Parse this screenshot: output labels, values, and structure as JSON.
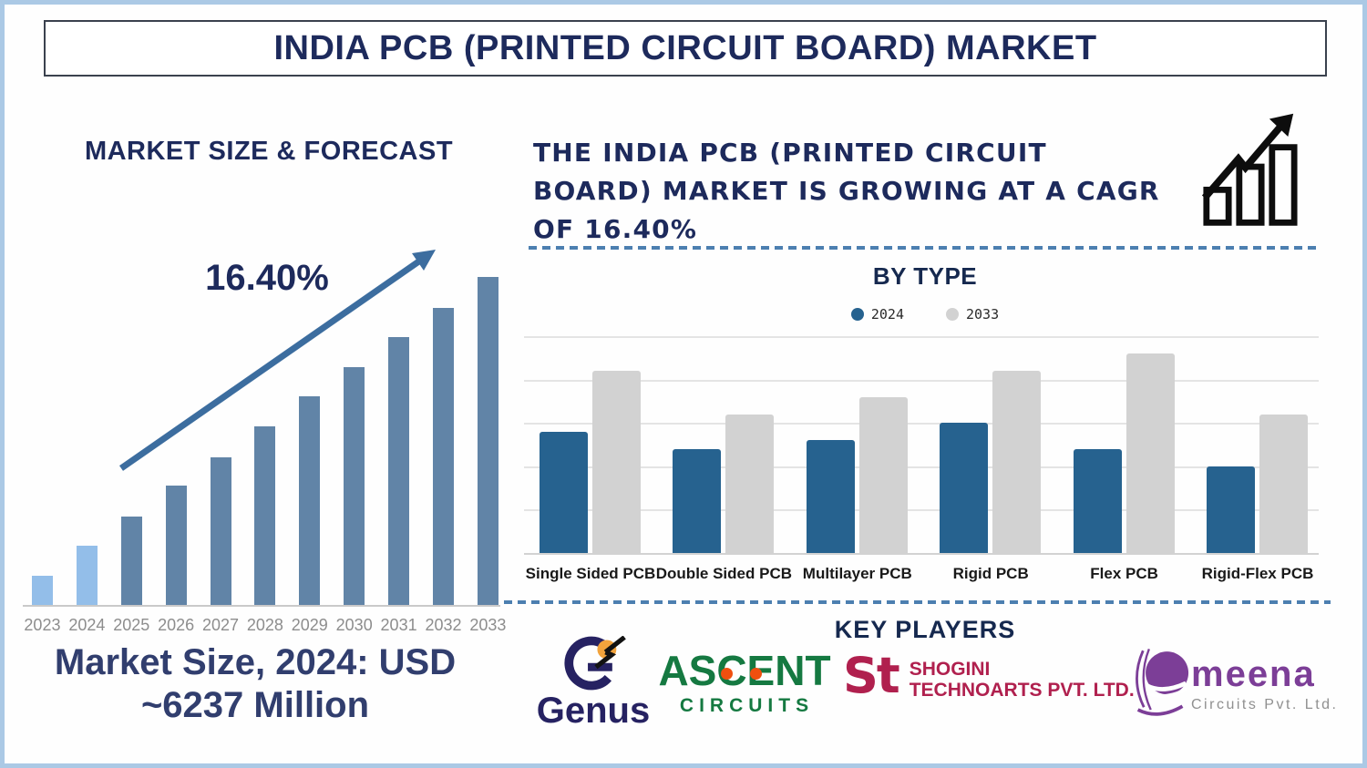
{
  "title": "INDIA PCB (PRINTED CIRCUIT BOARD) MARKET",
  "left_panel": {
    "section_title": "MARKET SIZE & FORECAST",
    "cagr_label": "16.40%",
    "market_size_note_line1": "Market Size, 2024: USD",
    "market_size_note_line2": "~6237 Million"
  },
  "right_panel": {
    "headline_lines": [
      "THE INDIA PCB (PRINTED CIRCUIT",
      "BOARD) MARKET IS GROWING AT A CAGR",
      "OF 16.40%"
    ],
    "section_title": "BY TYPE",
    "key_players_title": "KEY PLAYERS"
  },
  "key_players": [
    {
      "name": "Genus",
      "wordmark": "Genus"
    },
    {
      "name": "Ascent Circuits",
      "wordmark": "ASCENT",
      "tagline": "CIRCUITS"
    },
    {
      "name": "Shogini Technoarts",
      "monogram": "St",
      "line1": "SHOGINI",
      "line2": "TECHNOARTS PVT. LTD."
    },
    {
      "name": "Meena Circuits",
      "wordmark": "meena",
      "tagline": "Circuits Pvt. Ltd."
    }
  ],
  "colors": {
    "page_border": "#abc9e5",
    "navy_text": "#1d2a5c",
    "historical_bar": "#93bee9",
    "forecast_bar": "#6184a7",
    "bar_2024": "#26628f",
    "bar_2033": "#d2d2d2",
    "dashed_divider": "#4c7fb0",
    "trend_arrow": "#3c6d9f",
    "muted_year_label": "#8d8d8d",
    "genus_navy": "#262262",
    "genus_orange": "#f2a33c",
    "ascent_green": "#157941",
    "ascent_orange": "#f04f0f",
    "shogini_crimson": "#b0204e",
    "meena_purple": "#7c3e97"
  },
  "chart_data": [
    {
      "type": "bar",
      "title": "MARKET SIZE & FORECAST",
      "categories": [
        "2023",
        "2024",
        "2025",
        "2026",
        "2027",
        "2028",
        "2029",
        "2030",
        "2031",
        "2032",
        "2033"
      ],
      "values": [
        33,
        66,
        98,
        132,
        163,
        197,
        230,
        262,
        295,
        327,
        361
      ],
      "value_note": "relative bar heights in px; no y-axis shown, growth is schematic-linear",
      "ylim": [
        0,
        380
      ],
      "historical_bar_count": 2,
      "annotation": "16.40% CAGR arrow",
      "market_size_2024": "USD ~6237 Million",
      "grid": false,
      "legend_position": "none"
    },
    {
      "type": "bar",
      "subtype": "grouped",
      "title": "BY TYPE",
      "categories": [
        "Single Sided PCB",
        "Double Sided PCB",
        "Multilayer PCB",
        "Rigid PCB",
        "Flex PCB",
        "Rigid-Flex PCB"
      ],
      "series": [
        {
          "name": "2024",
          "color": "#26628f",
          "values": [
            56,
            48,
            52,
            60,
            48,
            40
          ]
        },
        {
          "name": "2033",
          "color": "#d2d2d2",
          "values": [
            84,
            64,
            72,
            84,
            92,
            64
          ]
        }
      ],
      "ylim": [
        0,
        100
      ],
      "gridlines": [
        20,
        40,
        60,
        80,
        100
      ],
      "grid": true,
      "legend_position": "top"
    }
  ]
}
